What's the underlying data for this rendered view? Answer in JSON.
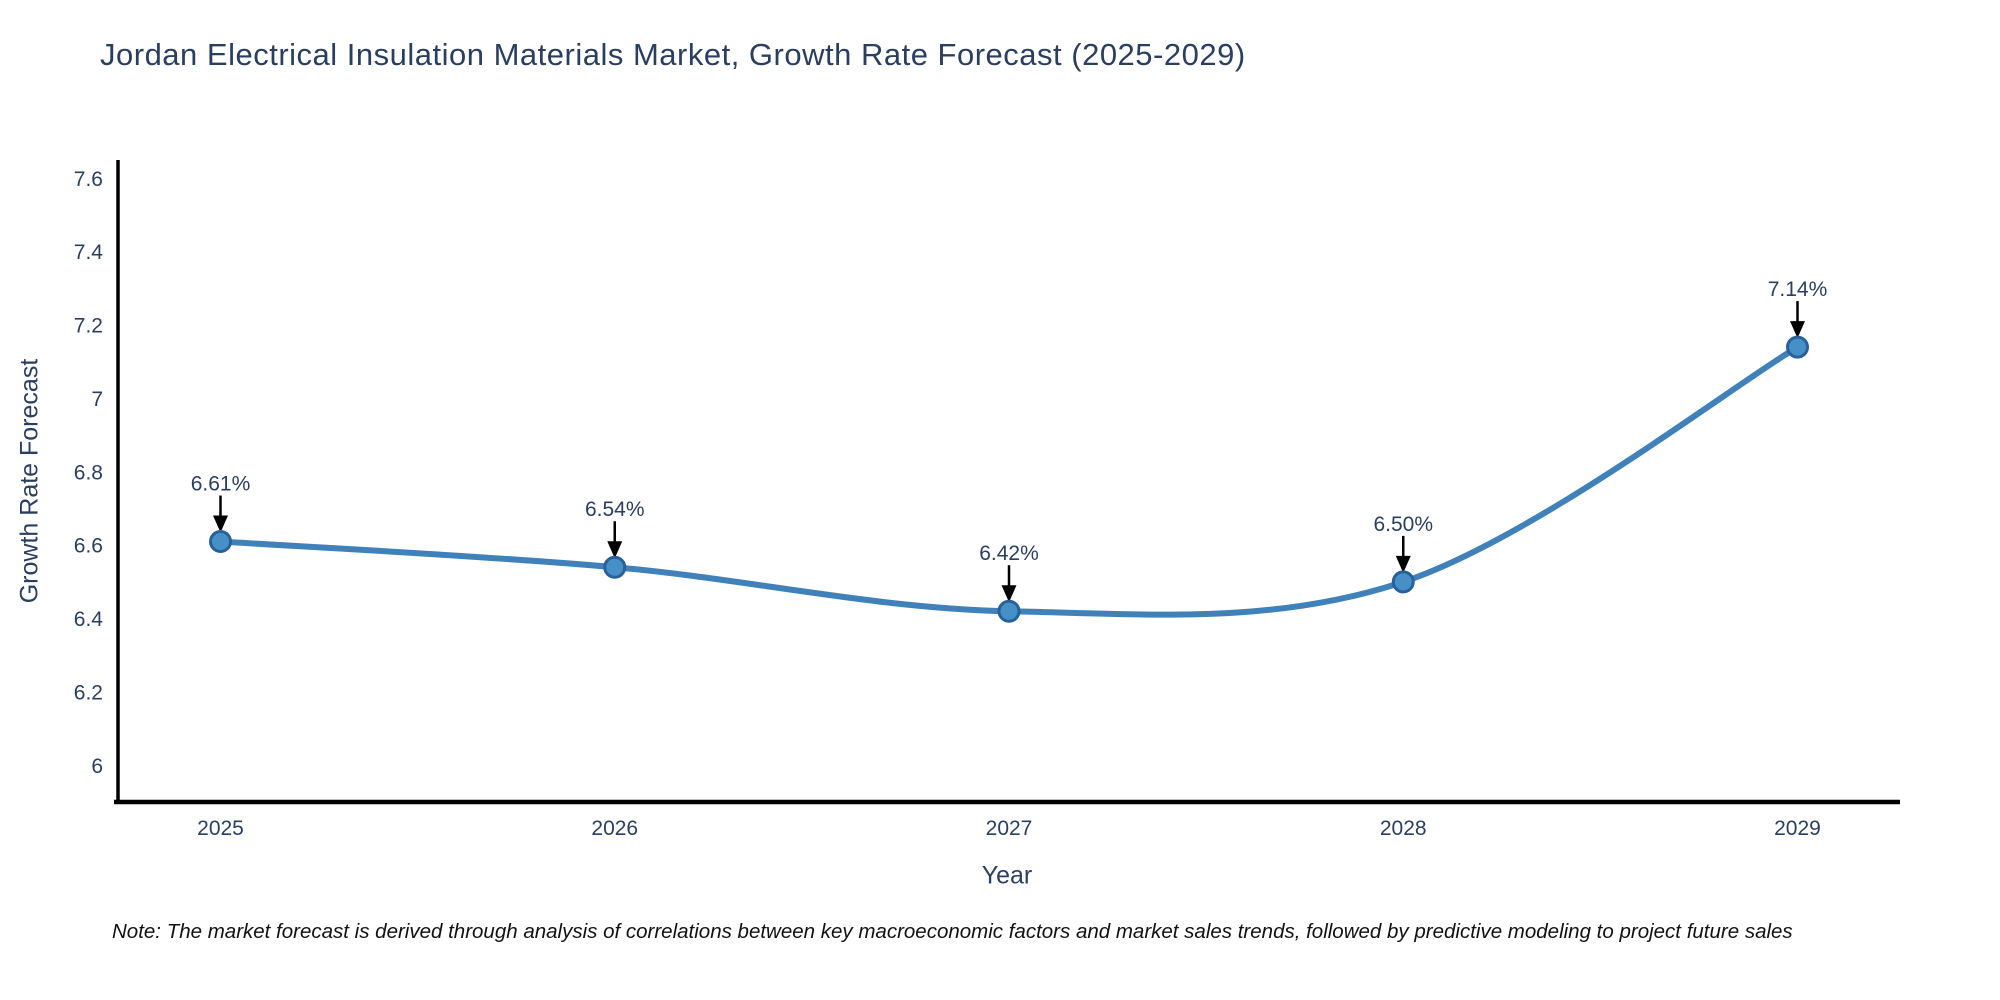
{
  "note": "Note: The market forecast is derived through analysis of correlations between key macroeconomic factors and market sales trends, followed by predictive modeling to project future sales",
  "chart_data": {
    "type": "line",
    "title": "Jordan Electrical Insulation Materials Market, Growth Rate Forecast (2025-2029)",
    "xlabel": "Year",
    "ylabel": "Growth Rate Forecast",
    "x": [
      2025,
      2026,
      2027,
      2028,
      2029
    ],
    "y": [
      6.61,
      6.54,
      6.42,
      6.5,
      7.14
    ],
    "point_labels": [
      "6.61%",
      "6.54%",
      "6.42%",
      "6.50%",
      "7.14%"
    ],
    "xticks": [
      2025,
      2026,
      2027,
      2028,
      2029
    ],
    "yticks": [
      6,
      6.2,
      6.4,
      6.6,
      6.8,
      7,
      7.2,
      7.4,
      7.6
    ],
    "xlim": [
      2024.74,
      2029.26
    ],
    "ylim": [
      5.9,
      7.65
    ],
    "line_shape": "spline",
    "grid": false,
    "legend": false,
    "colors": {
      "line": "#3f81b8",
      "marker_fill": "#4690c8",
      "marker_edge": "#2a6099",
      "arrow": "#000000",
      "axis_line": "#000000",
      "text": "#2a3f5f",
      "note_text": "#111111",
      "background": "#ffffff"
    }
  }
}
